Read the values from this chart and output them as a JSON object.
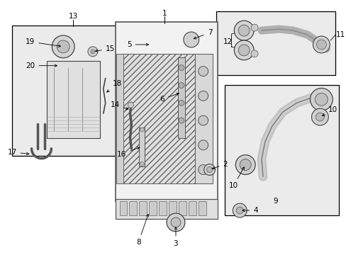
{
  "bg_color": "#ffffff",
  "line_color": "#000000",
  "gray_bg": "#e8e8e8",
  "box_fill": "#ebebeb",
  "rad_fill": "#f0f0f0",
  "hatch_gray": "#c8c8c8"
}
